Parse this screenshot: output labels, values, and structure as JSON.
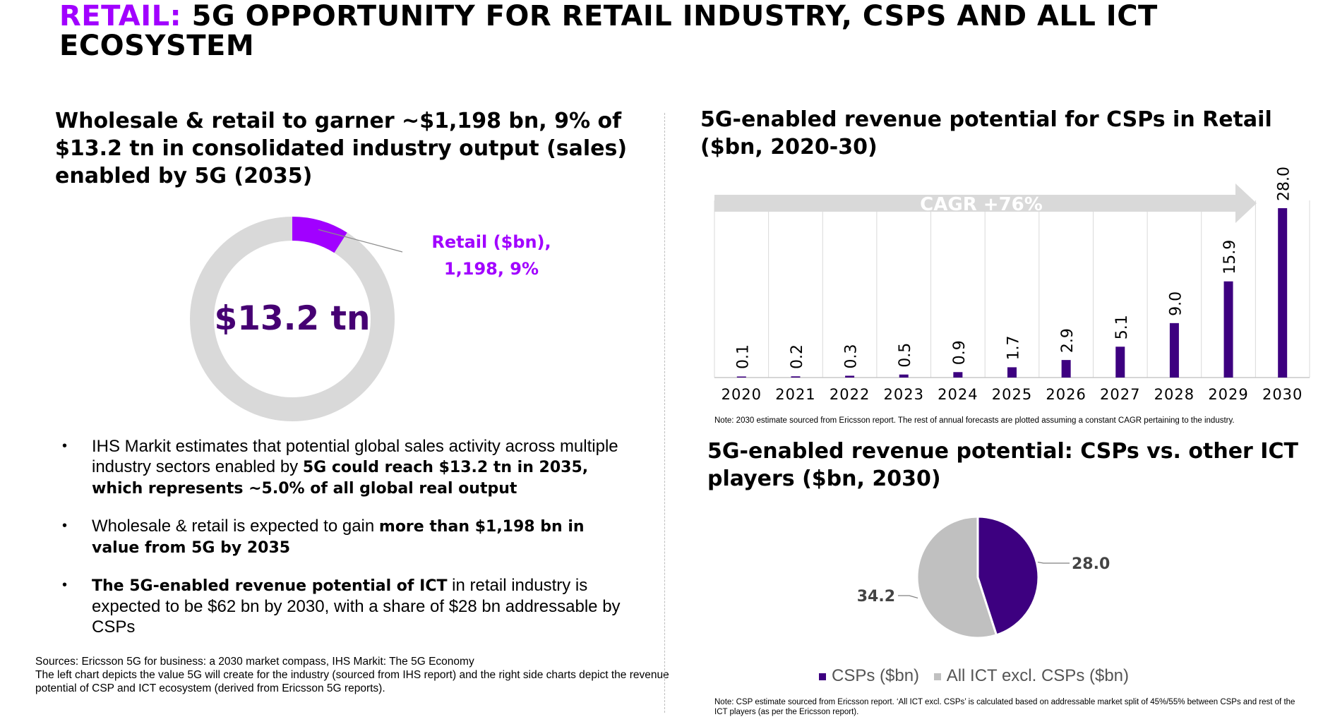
{
  "slide": {
    "title_keyword": "RETAIL:",
    "title_rest": " 5G OPPORTUNITY FOR RETAIL INDUSTRY, CSPS AND ALL ICT ECOSYSTEM"
  },
  "left": {
    "heading": "Wholesale & retail to garner ~$1,198 bn, 9% of $13.2 tn in consolidated industry output (sales) enabled by 5G (2035)",
    "bullets": [
      {
        "pre": "IHS Markit estimates that potential global sales activity across multiple industry sectors enabled by ",
        "bold": "5G could reach $13.2 tn in 2035, which represents ~5.0% of all global real output",
        "post": ""
      },
      {
        "pre": "Wholesale & retail is expected to gain ",
        "bold": "more than $1,198 bn in value from 5G by 2035",
        "post": ""
      },
      {
        "pre": "",
        "bold": "The 5G-enabled revenue potential of ICT",
        "post": " in retail industry is expected to be $62 bn by 2030, with a share of $28 bn addressable by CSPs"
      }
    ],
    "sources_line1": "Sources: Ericsson 5G for business: a 2030 market compass, IHS Markit: The 5G Economy",
    "sources_line2": "The left chart depicts the value 5G will create for the industry (sourced from IHS report) and the right side charts depict the revenue potential of CSP and ICT ecosystem (derived from Ericsson 5G reports)."
  },
  "right": {
    "heading1": "5G-enabled revenue potential for CSPs in Retail ($bn, 2020-30)",
    "note1": "Note: 2030 estimate sourced from Ericsson report. The rest of annual forecasts are plotted assuming a constant CAGR pertaining to the industry.",
    "heading2": "5G-enabled revenue potential: CSPs vs. other ICT players ($bn, 2030)",
    "note2": "Note: CSP estimate sourced from Ericsson report. ‘All ICT excl. CSPs’ is calculated based on addressable market split of 45%/55% between CSPs and rest of the ICT players (as per the Ericsson report)."
  },
  "colors": {
    "accent": "#a100ff",
    "dark_purple": "#460073",
    "bar_purple": "#3d0080",
    "grey": "#d9d9d9",
    "pie_grey": "#c0c0c0",
    "arrow_grey": "#d9d9d9"
  },
  "chart_data": [
    {
      "type": "pie",
      "style": "donut",
      "center_label": "$13.2 tn",
      "total": 13.2,
      "slices": [
        {
          "name": "Retail ($bn)",
          "label_line1": "Retail ($bn),",
          "label_line2": "1,198, 9%",
          "value": 1198,
          "percent": 9,
          "color": "#a100ff"
        },
        {
          "name": "Other",
          "percent": 91,
          "color": "#d9d9d9"
        }
      ]
    },
    {
      "type": "bar",
      "categories": [
        "2020",
        "2021",
        "2022",
        "2023",
        "2024",
        "2025",
        "2026",
        "2027",
        "2028",
        "2029",
        "2030"
      ],
      "values": [
        0.1,
        0.2,
        0.3,
        0.5,
        0.9,
        1.7,
        2.9,
        5.1,
        9.0,
        15.9,
        28.0
      ],
      "value_labels": [
        "0.1",
        "0.2",
        "0.3",
        "0.5",
        "0.9",
        "1.7",
        "2.9",
        "5.1",
        "9.0",
        "15.9",
        "28.0"
      ],
      "annotation": "CAGR +76%",
      "ylim": [
        0,
        28
      ],
      "grid": true
    },
    {
      "type": "pie",
      "slices": [
        {
          "name": "CSPs ($bn)",
          "value": 28.0,
          "label": "28.0",
          "color": "#3d0080"
        },
        {
          "name": "All ICT excl. CSPs ($bn)",
          "value": 34.2,
          "label": "34.2",
          "color": "#c0c0c0"
        }
      ],
      "legend": "bottom"
    }
  ]
}
